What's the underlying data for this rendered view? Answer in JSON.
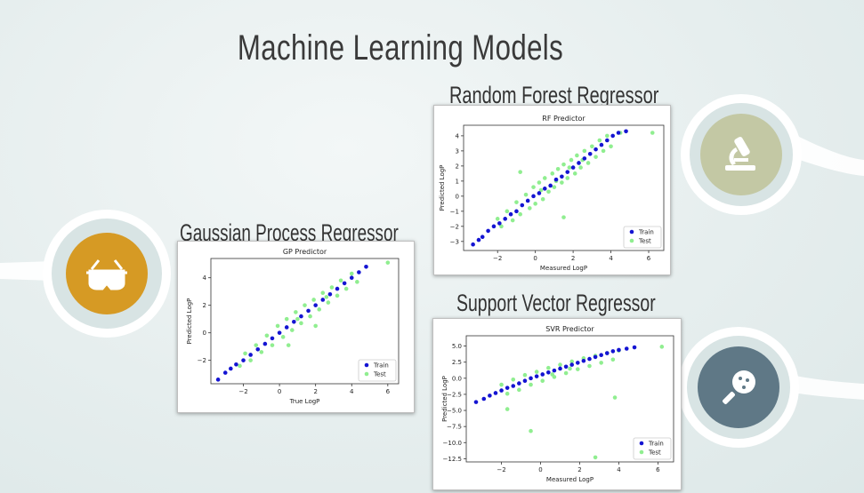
{
  "slide": {
    "title": "Machine Learning Models",
    "colors": {
      "train": "#1414d2",
      "test": "#90ee90",
      "mustard": "#d69a24",
      "sage": "#c3c8a4",
      "slate": "#5f7886"
    },
    "icons": {
      "left": "vr-goggles-icon",
      "top_right": "microscope-icon",
      "bottom_right": "magnifier-icon"
    }
  },
  "panels": {
    "rf": {
      "heading": "Random Forest Regressor"
    },
    "gp": {
      "heading": "Gaussian Process Regressor"
    },
    "svr": {
      "heading": "Support Vector Regressor"
    }
  },
  "chart_data": [
    {
      "type": "scatter",
      "title": "RF Predictor",
      "xlabel": "Measured LogP",
      "ylabel": "Predicted LogP",
      "xlim": [
        -3.8,
        6.8
      ],
      "ylim": [
        -3.6,
        4.7
      ],
      "xticks": [
        "-2",
        "0",
        "2",
        "4",
        "6"
      ],
      "yticks": [
        "-3",
        "-2",
        "-1",
        "0",
        "1",
        "2",
        "3",
        "4"
      ],
      "legend": "bottom-right",
      "series": [
        {
          "name": "Train",
          "color": "#1414d2",
          "points": [
            [
              -3.3,
              -3.2
            ],
            [
              -3.0,
              -2.9
            ],
            [
              -2.8,
              -2.7
            ],
            [
              -2.5,
              -2.3
            ],
            [
              -2.2,
              -2.0
            ],
            [
              -1.9,
              -1.8
            ],
            [
              -1.6,
              -1.5
            ],
            [
              -1.3,
              -1.2
            ],
            [
              -1.0,
              -1.0
            ],
            [
              -0.7,
              -0.6
            ],
            [
              -0.4,
              -0.3
            ],
            [
              -0.1,
              0.0
            ],
            [
              0.2,
              0.2
            ],
            [
              0.5,
              0.5
            ],
            [
              0.8,
              0.7
            ],
            [
              1.1,
              1.1
            ],
            [
              1.4,
              1.3
            ],
            [
              1.7,
              1.6
            ],
            [
              2.0,
              1.9
            ],
            [
              2.3,
              2.2
            ],
            [
              2.6,
              2.5
            ],
            [
              2.9,
              2.8
            ],
            [
              3.2,
              3.1
            ],
            [
              3.5,
              3.4
            ],
            [
              3.8,
              3.7
            ],
            [
              4.1,
              4.0
            ],
            [
              4.4,
              4.2
            ],
            [
              4.8,
              4.3
            ]
          ]
        },
        {
          "name": "Test",
          "color": "#90ee90",
          "points": [
            [
              -2.0,
              -1.5
            ],
            [
              -1.8,
              -2.0
            ],
            [
              -1.5,
              -1.0
            ],
            [
              -1.2,
              -1.6
            ],
            [
              -1.0,
              -0.4
            ],
            [
              -0.8,
              -1.2
            ],
            [
              -0.5,
              0.1
            ],
            [
              -0.3,
              -0.8
            ],
            [
              -0.1,
              0.6
            ],
            [
              0.0,
              -0.5
            ],
            [
              0.2,
              0.9
            ],
            [
              0.4,
              -0.2
            ],
            [
              0.5,
              1.2
            ],
            [
              0.7,
              0.3
            ],
            [
              0.9,
              1.5
            ],
            [
              1.0,
              0.6
            ],
            [
              1.2,
              1.8
            ],
            [
              1.4,
              0.9
            ],
            [
              1.5,
              2.1
            ],
            [
              1.7,
              1.2
            ],
            [
              1.9,
              2.4
            ],
            [
              2.1,
              1.5
            ],
            [
              2.2,
              2.7
            ],
            [
              2.4,
              1.9
            ],
            [
              2.6,
              3.0
            ],
            [
              2.8,
              2.2
            ],
            [
              3.0,
              3.3
            ],
            [
              3.2,
              2.6
            ],
            [
              3.4,
              3.7
            ],
            [
              3.6,
              3.0
            ],
            [
              3.8,
              4.0
            ],
            [
              4.0,
              3.3
            ],
            [
              4.5,
              4.2
            ],
            [
              6.2,
              4.2
            ],
            [
              1.5,
              -1.4
            ],
            [
              -0.8,
              1.6
            ],
            [
              0.3,
              0.4
            ],
            [
              1.1,
              1.0
            ],
            [
              1.8,
              1.9
            ],
            [
              2.5,
              2.4
            ]
          ]
        }
      ]
    },
    {
      "type": "scatter",
      "title": "GP Predictor",
      "xlabel": "True LogP",
      "ylabel": "Predicted LogP",
      "xlim": [
        -3.8,
        6.6
      ],
      "ylim": [
        -3.7,
        5.4
      ],
      "xticks": [
        "-2",
        "0",
        "2",
        "4",
        "6"
      ],
      "yticks": [
        "-2",
        "0",
        "2",
        "4"
      ],
      "legend": "bottom-right",
      "series": [
        {
          "name": "Train",
          "color": "#1414d2",
          "points": [
            [
              -3.4,
              -3.4
            ],
            [
              -3.0,
              -2.9
            ],
            [
              -2.7,
              -2.6
            ],
            [
              -2.4,
              -2.3
            ],
            [
              -2.0,
              -2.0
            ],
            [
              -1.6,
              -1.6
            ],
            [
              -1.2,
              -1.2
            ],
            [
              -0.8,
              -0.8
            ],
            [
              -0.4,
              -0.4
            ],
            [
              0.0,
              0.0
            ],
            [
              0.4,
              0.4
            ],
            [
              0.8,
              0.8
            ],
            [
              1.2,
              1.2
            ],
            [
              1.6,
              1.6
            ],
            [
              2.0,
              2.0
            ],
            [
              2.4,
              2.4
            ],
            [
              2.8,
              2.8
            ],
            [
              3.2,
              3.2
            ],
            [
              3.6,
              3.6
            ],
            [
              4.0,
              4.0
            ],
            [
              4.4,
              4.4
            ],
            [
              4.8,
              4.8
            ]
          ]
        },
        {
          "name": "Test",
          "color": "#90ee90",
          "points": [
            [
              -2.2,
              -2.4
            ],
            [
              -1.9,
              -1.5
            ],
            [
              -1.6,
              -2.0
            ],
            [
              -1.3,
              -0.9
            ],
            [
              -1.0,
              -1.4
            ],
            [
              -0.7,
              -0.2
            ],
            [
              -0.4,
              -0.9
            ],
            [
              -0.1,
              0.5
            ],
            [
              0.2,
              -0.3
            ],
            [
              0.4,
              1.0
            ],
            [
              0.7,
              0.2
            ],
            [
              0.9,
              1.5
            ],
            [
              1.2,
              0.7
            ],
            [
              1.4,
              2.0
            ],
            [
              1.7,
              1.2
            ],
            [
              1.9,
              2.4
            ],
            [
              2.2,
              1.7
            ],
            [
              2.4,
              2.9
            ],
            [
              2.7,
              2.2
            ],
            [
              2.9,
              3.3
            ],
            [
              3.2,
              2.7
            ],
            [
              3.4,
              3.8
            ],
            [
              3.7,
              3.2
            ],
            [
              4.0,
              4.3
            ],
            [
              4.3,
              3.7
            ],
            [
              6.0,
              5.1
            ],
            [
              2.0,
              0.5
            ],
            [
              0.5,
              -0.9
            ],
            [
              1.0,
              1.0
            ],
            [
              2.6,
              2.6
            ]
          ]
        }
      ]
    },
    {
      "type": "scatter",
      "title": "SVR Predictor",
      "xlabel": "Measured LogP",
      "ylabel": "Predicted LogP",
      "xlim": [
        -3.8,
        6.8
      ],
      "ylim": [
        -13.0,
        6.6
      ],
      "xticks": [
        "-2",
        "0",
        "2",
        "4",
        "6"
      ],
      "yticks": [
        "5.0",
        "2.5",
        "0.0",
        "-2.5",
        "-5.0",
        "-7.5",
        "-10.0",
        "-12.5"
      ],
      "legend": "bottom-right",
      "series": [
        {
          "name": "Train",
          "color": "#1414d2",
          "points": [
            [
              -3.3,
              -3.7
            ],
            [
              -2.9,
              -3.2
            ],
            [
              -2.6,
              -2.7
            ],
            [
              -2.3,
              -2.3
            ],
            [
              -2.0,
              -1.9
            ],
            [
              -1.7,
              -1.5
            ],
            [
              -1.4,
              -1.2
            ],
            [
              -1.1,
              -0.8
            ],
            [
              -0.8,
              -0.4
            ],
            [
              -0.5,
              0.0
            ],
            [
              -0.2,
              0.3
            ],
            [
              0.1,
              0.6
            ],
            [
              0.4,
              0.9
            ],
            [
              0.7,
              1.2
            ],
            [
              1.0,
              1.5
            ],
            [
              1.3,
              1.8
            ],
            [
              1.6,
              2.1
            ],
            [
              1.9,
              2.4
            ],
            [
              2.2,
              2.7
            ],
            [
              2.5,
              3.0
            ],
            [
              2.8,
              3.3
            ],
            [
              3.1,
              3.6
            ],
            [
              3.4,
              3.9
            ],
            [
              3.7,
              4.2
            ],
            [
              4.0,
              4.4
            ],
            [
              4.4,
              4.6
            ],
            [
              4.8,
              4.8
            ]
          ]
        },
        {
          "name": "Test",
          "color": "#90ee90",
          "points": [
            [
              -2.0,
              -1.0
            ],
            [
              -1.7,
              -2.4
            ],
            [
              -1.4,
              -0.2
            ],
            [
              -1.1,
              -1.8
            ],
            [
              -0.8,
              0.5
            ],
            [
              -0.5,
              -1.0
            ],
            [
              -0.2,
              1.0
            ],
            [
              0.1,
              -0.4
            ],
            [
              0.4,
              1.6
            ],
            [
              0.7,
              0.2
            ],
            [
              1.0,
              2.1
            ],
            [
              1.3,
              0.8
            ],
            [
              1.6,
              2.6
            ],
            [
              1.9,
              1.4
            ],
            [
              2.2,
              3.1
            ],
            [
              2.5,
              1.9
            ],
            [
              2.8,
              3.5
            ],
            [
              3.1,
              2.4
            ],
            [
              3.4,
              3.9
            ],
            [
              3.7,
              2.9
            ],
            [
              4.0,
              4.3
            ],
            [
              6.2,
              4.9
            ],
            [
              2.8,
              -12.3
            ],
            [
              -0.5,
              -8.2
            ],
            [
              3.8,
              -3.0
            ],
            [
              -1.7,
              -4.8
            ],
            [
              0.6,
              0.6
            ],
            [
              1.5,
              1.5
            ]
          ]
        }
      ]
    }
  ]
}
